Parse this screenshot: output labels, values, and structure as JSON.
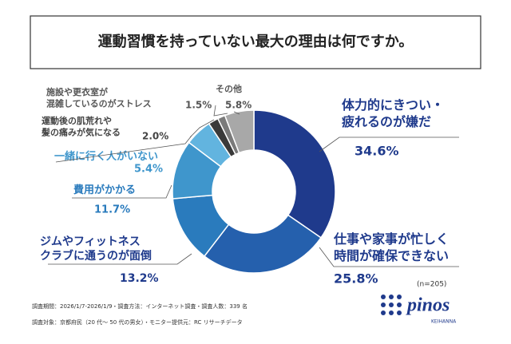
{
  "chart_data": {
    "type": "donut",
    "title": "運動習慣を持っていない最大の理由は何ですか。",
    "categories": [
      "体力的にきつい・\n疲れるのが嫌だ",
      "仕事や家事が忙しく\n時間が確保できない",
      "ジムやフィットネス\nクラブに通うのが面倒",
      "費用がかかる",
      "一緒に行く人がいない",
      "運動後の肌荒れや\n髪の痛みが気になる",
      "施設や更衣室が\n混雑しているのがストレス",
      "その他"
    ],
    "values": [
      34.6,
      25.8,
      13.2,
      11.7,
      5.4,
      2.0,
      1.5,
      5.8
    ],
    "value_labels": [
      "34.6%",
      "25.8%",
      "13.2%",
      "11.7%",
      "5.4%",
      "2.0%",
      "1.5%",
      "5.8%"
    ],
    "colors": [
      "#1f3a8c",
      "#2560ad",
      "#2a7bbd",
      "#3f96cc",
      "#62b4df",
      "#3a3a3a",
      "#7a7a7a",
      "#a8a8a8"
    ],
    "sample_note": "(n=205)"
  },
  "footer": {
    "notes": [
      "調査期間：2026/1/7-2026/1/9・調査方法：インターネット調査・調査人数：339 名",
      "調査対象：京都府民（20 代～ 50 代の男女）・モニター提供元：RC リサーチデータ"
    ],
    "logo": {
      "name": "pinos",
      "sub": "KEIHANNA"
    }
  }
}
